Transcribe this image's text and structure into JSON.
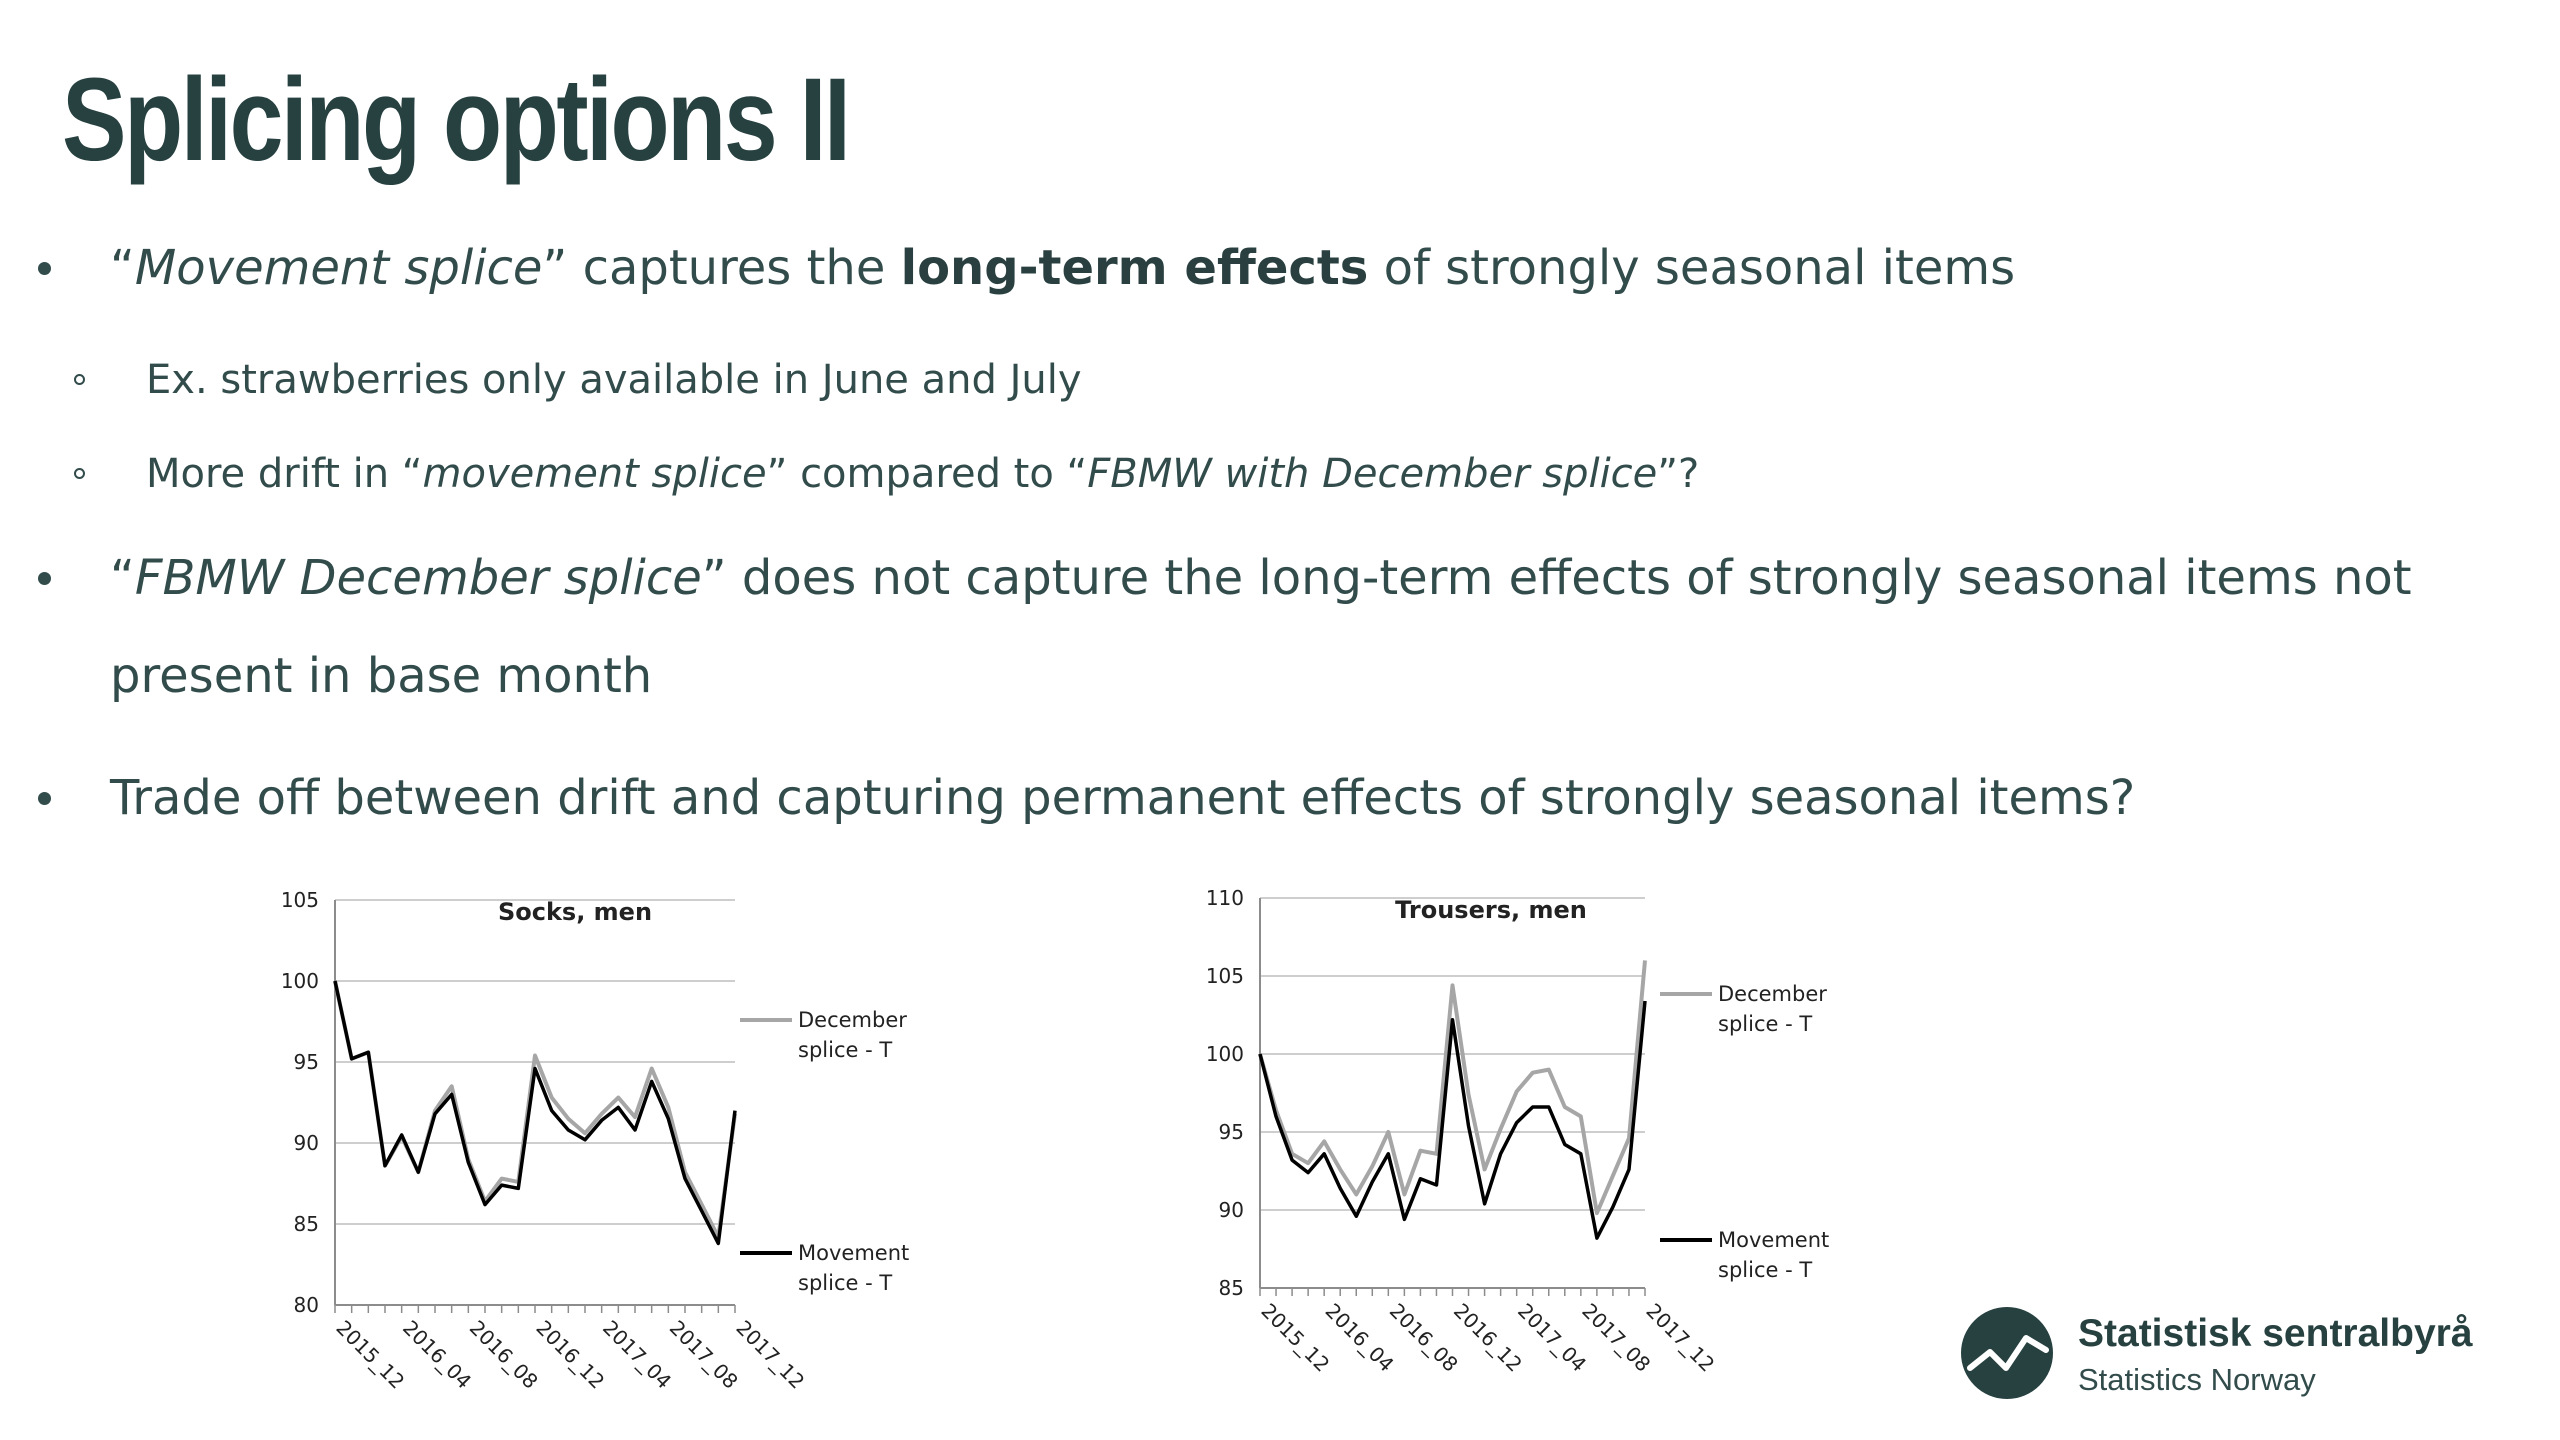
{
  "slide": {
    "title": "Splicing options II"
  },
  "bullets": [
    {
      "level": 1,
      "parts": [
        {
          "text": "“",
          "style": "normal"
        },
        {
          "text": "Movement splice",
          "style": "italic"
        },
        {
          "text": "” captures the ",
          "style": "normal"
        },
        {
          "text": "long-term effects",
          "style": "bold"
        },
        {
          "text": " of strongly seasonal items",
          "style": "normal"
        }
      ]
    },
    {
      "level": 2,
      "parts": [
        {
          "text": "Ex. strawberries only available in June and July",
          "style": "normal"
        }
      ]
    },
    {
      "level": 2,
      "parts": [
        {
          "text": "More drift in “",
          "style": "normal"
        },
        {
          "text": "movement splice",
          "style": "italic"
        },
        {
          "text": "” compared to “",
          "style": "normal"
        },
        {
          "text": "FBMW with December splice",
          "style": "italic"
        },
        {
          "text": "”?",
          "style": "normal"
        }
      ]
    },
    {
      "level": 1,
      "parts": [
        {
          "text": "“",
          "style": "normal"
        },
        {
          "text": "FBMW December splice",
          "style": "italic"
        },
        {
          "text": "” does not capture the long-term effects of strongly seasonal items not",
          "style": "normal"
        }
      ],
      "continuation": "present in base month"
    },
    {
      "level": 1,
      "parts": [
        {
          "text": "Trade off between drift and capturing permanent effects of strongly seasonal items?",
          "style": "normal"
        }
      ]
    }
  ],
  "chart_data": [
    {
      "type": "line",
      "title": "Socks, men",
      "xlabel": "",
      "ylabel": "",
      "ylim": [
        80,
        105
      ],
      "yticks": [
        80,
        85,
        90,
        95,
        100,
        105
      ],
      "grid": true,
      "legend_position": "right",
      "x_tick_labels": [
        "2015_12",
        "2016_04",
        "2016_08",
        "2016_12",
        "2017_04",
        "2017_08",
        "2017_12"
      ],
      "x_tick_every": 4,
      "n_points": 25,
      "series": [
        {
          "name": "December splice - T",
          "color": "#a6a6a6",
          "values": [
            100,
            95.2,
            95.6,
            88.6,
            90.4,
            88.2,
            92,
            93.5,
            89,
            86.4,
            87.8,
            87.6,
            95.4,
            92.8,
            91.5,
            90.6,
            91.8,
            92.8,
            91.6,
            94.6,
            92.2,
            88.2,
            86.2,
            84.2,
            91.8
          ]
        },
        {
          "name": "Movement splice - T",
          "color": "#000000",
          "values": [
            100,
            95.2,
            95.6,
            88.6,
            90.5,
            88.2,
            91.8,
            93,
            88.8,
            86.2,
            87.4,
            87.2,
            94.6,
            92,
            90.8,
            90.2,
            91.4,
            92.2,
            90.8,
            93.8,
            91.5,
            87.8,
            85.8,
            83.8,
            92
          ]
        }
      ]
    },
    {
      "type": "line",
      "title": "Trousers, men",
      "xlabel": "",
      "ylabel": "",
      "ylim": [
        85,
        110
      ],
      "yticks": [
        85,
        90,
        95,
        100,
        105,
        110
      ],
      "grid": true,
      "legend_position": "right",
      "x_tick_labels": [
        "2015_12",
        "2016_04",
        "2016_08",
        "2016_12",
        "2017_04",
        "2017_08",
        "2017_12"
      ],
      "x_tick_every": 4,
      "n_points": 25,
      "series": [
        {
          "name": "December splice - T",
          "color": "#a6a6a6",
          "values": [
            100,
            96.4,
            93.6,
            93,
            94.4,
            92.6,
            91,
            92.8,
            95,
            91,
            93.8,
            93.6,
            104.4,
            97.4,
            92.6,
            95.2,
            97.6,
            98.8,
            99,
            96.6,
            96,
            89.8,
            92.2,
            94.6,
            106
          ]
        },
        {
          "name": "Movement splice - T",
          "color": "#000000",
          "values": [
            100,
            96,
            93.2,
            92.4,
            93.6,
            91.4,
            89.6,
            91.8,
            93.6,
            89.4,
            92,
            91.6,
            102.2,
            95.4,
            90.4,
            93.6,
            95.6,
            96.6,
            96.6,
            94.2,
            93.6,
            88.2,
            90.2,
            92.6,
            103.4
          ]
        }
      ]
    }
  ],
  "logo": {
    "name": "Statistisk sentralbyrå",
    "subtitle": "Statistics Norway",
    "mark_color": "#274040",
    "mark_icon": "sparkline-circle-icon"
  }
}
